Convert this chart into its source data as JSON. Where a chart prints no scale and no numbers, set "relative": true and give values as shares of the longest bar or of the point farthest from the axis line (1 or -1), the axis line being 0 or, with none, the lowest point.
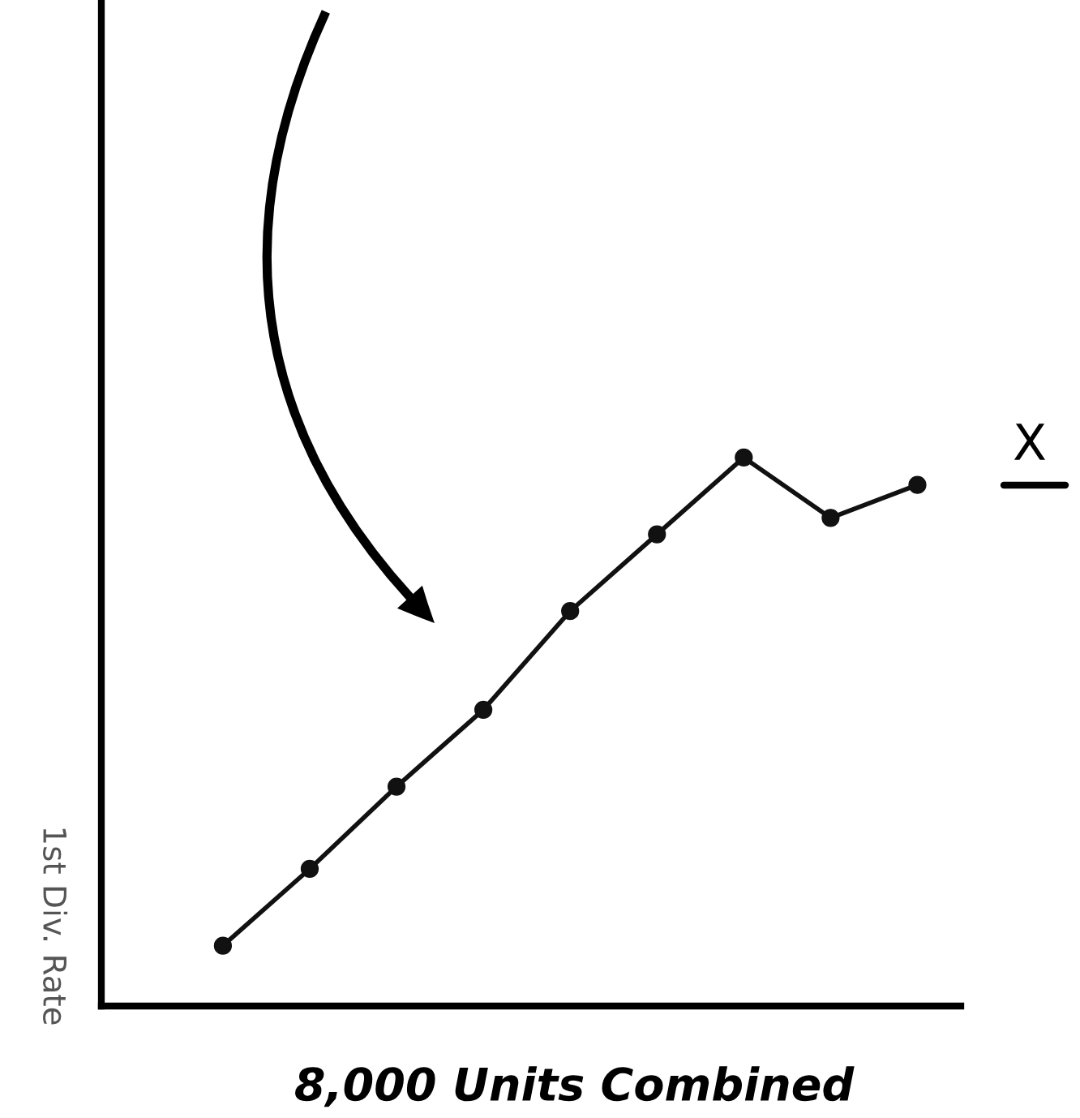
{
  "chart_data": {
    "type": "line",
    "relative": true,
    "xlabel": "8,000 Units Combined",
    "ylabel": "1st Div. Rate",
    "annotations": [
      "X"
    ],
    "categories": [
      null,
      null,
      null,
      null,
      null,
      null,
      null,
      null,
      null
    ],
    "series": [
      {
        "color": "#111111",
        "values": [
          0.11,
          0.25,
          0.4,
          0.54,
          0.72,
          0.86,
          1.0,
          0.89,
          0.95
        ]
      }
    ],
    "marker": "circle",
    "line_style": "solid",
    "grid": false,
    "legend": false
  }
}
